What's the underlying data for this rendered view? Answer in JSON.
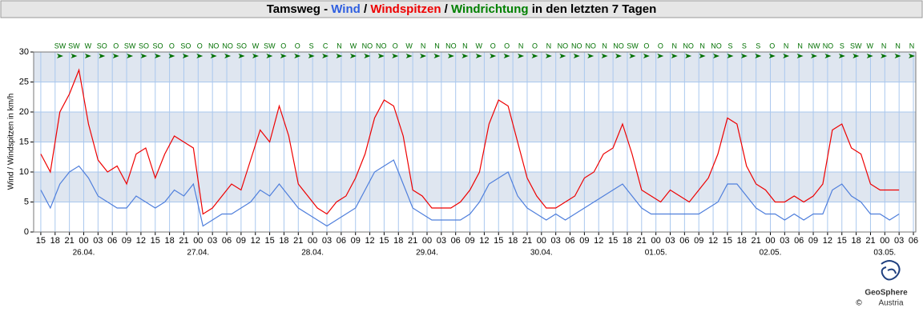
{
  "chart_data": {
    "type": "line",
    "title_parts": [
      {
        "text": "Tamsweg - ",
        "color": "#000000"
      },
      {
        "text": "Wind",
        "color": "#2f5fe0"
      },
      {
        "text": " / ",
        "color": "#000000"
      },
      {
        "text": "Windspitzen",
        "color": "#ee0000"
      },
      {
        "text": " / ",
        "color": "#000000"
      },
      {
        "text": "Windrichtung",
        "color": "#008000"
      },
      {
        "text": " in den letzten 7 Tagen",
        "color": "#000000"
      }
    ],
    "y_label": "Wind / Windspitzen in km/h",
    "ylim": [
      0,
      30
    ],
    "yticks": [
      0,
      5,
      10,
      15,
      20,
      25,
      30
    ],
    "grid": true,
    "xlim": [
      -10.5,
      174.5
    ],
    "xticks": [
      {
        "value": -9,
        "label": "15"
      },
      {
        "value": -6,
        "label": "18"
      },
      {
        "value": -3,
        "label": "21"
      },
      {
        "value": 0,
        "label": "00"
      },
      {
        "value": 3,
        "label": "03"
      },
      {
        "value": 6,
        "label": "06"
      },
      {
        "value": 9,
        "label": "09"
      },
      {
        "value": 12,
        "label": "12"
      },
      {
        "value": 15,
        "label": "15"
      },
      {
        "value": 18,
        "label": "18"
      },
      {
        "value": 21,
        "label": "21"
      },
      {
        "value": 24,
        "label": "00"
      },
      {
        "value": 27,
        "label": "03"
      },
      {
        "value": 30,
        "label": "06"
      },
      {
        "value": 33,
        "label": "09"
      },
      {
        "value": 36,
        "label": "12"
      },
      {
        "value": 39,
        "label": "15"
      },
      {
        "value": 42,
        "label": "18"
      },
      {
        "value": 45,
        "label": "21"
      },
      {
        "value": 48,
        "label": "00"
      },
      {
        "value": 51,
        "label": "03"
      },
      {
        "value": 54,
        "label": "06"
      },
      {
        "value": 57,
        "label": "09"
      },
      {
        "value": 60,
        "label": "12"
      },
      {
        "value": 63,
        "label": "15"
      },
      {
        "value": 66,
        "label": "18"
      },
      {
        "value": 69,
        "label": "21"
      },
      {
        "value": 72,
        "label": "00"
      },
      {
        "value": 75,
        "label": "03"
      },
      {
        "value": 78,
        "label": "06"
      },
      {
        "value": 81,
        "label": "09"
      },
      {
        "value": 84,
        "label": "12"
      },
      {
        "value": 87,
        "label": "15"
      },
      {
        "value": 90,
        "label": "18"
      },
      {
        "value": 93,
        "label": "21"
      },
      {
        "value": 96,
        "label": "00"
      },
      {
        "value": 99,
        "label": "03"
      },
      {
        "value": 102,
        "label": "06"
      },
      {
        "value": 105,
        "label": "09"
      },
      {
        "value": 108,
        "label": "12"
      },
      {
        "value": 111,
        "label": "15"
      },
      {
        "value": 114,
        "label": "18"
      },
      {
        "value": 117,
        "label": "21"
      },
      {
        "value": 120,
        "label": "00"
      },
      {
        "value": 123,
        "label": "03"
      },
      {
        "value": 126,
        "label": "06"
      },
      {
        "value": 129,
        "label": "09"
      },
      {
        "value": 132,
        "label": "12"
      },
      {
        "value": 135,
        "label": "15"
      },
      {
        "value": 138,
        "label": "18"
      },
      {
        "value": 141,
        "label": "21"
      },
      {
        "value": 144,
        "label": "00"
      },
      {
        "value": 147,
        "label": "03"
      },
      {
        "value": 150,
        "label": "06"
      },
      {
        "value": 153,
        "label": "09"
      },
      {
        "value": 156,
        "label": "12"
      },
      {
        "value": 159,
        "label": "15"
      },
      {
        "value": 162,
        "label": "18"
      },
      {
        "value": 165,
        "label": "21"
      },
      {
        "value": 168,
        "label": "00"
      },
      {
        "value": 171,
        "label": "03"
      },
      {
        "value": 174,
        "label": "06"
      }
    ],
    "date_ticks": [
      {
        "value": 0,
        "label": "26.04."
      },
      {
        "value": 24,
        "label": "27.04."
      },
      {
        "value": 48,
        "label": "28.04."
      },
      {
        "value": 72,
        "label": "29.04."
      },
      {
        "value": 96,
        "label": "30.04."
      },
      {
        "value": 120,
        "label": "01.05."
      },
      {
        "value": 144,
        "label": "02.05."
      },
      {
        "value": 168,
        "label": "03.05."
      }
    ],
    "x": [
      -9,
      -7,
      -5,
      -3,
      -1,
      1,
      3,
      5,
      7,
      9,
      11,
      13,
      15,
      17,
      19,
      21,
      23,
      25,
      27,
      29,
      31,
      33,
      35,
      37,
      39,
      41,
      43,
      45,
      47,
      49,
      51,
      53,
      55,
      57,
      59,
      61,
      63,
      65,
      67,
      69,
      71,
      73,
      75,
      77,
      79,
      81,
      83,
      85,
      87,
      89,
      91,
      93,
      95,
      97,
      99,
      101,
      103,
      105,
      107,
      109,
      111,
      113,
      115,
      117,
      119,
      121,
      123,
      125,
      127,
      129,
      131,
      133,
      135,
      137,
      139,
      141,
      143,
      145,
      147,
      149,
      151,
      153,
      155,
      157,
      159,
      161,
      163,
      165,
      167,
      169,
      171
    ],
    "series": [
      {
        "name": "Windspitzen",
        "color": "#ee0000",
        "values": [
          13,
          10,
          20,
          23,
          27,
          18,
          12,
          10,
          11,
          8,
          13,
          14,
          9,
          13,
          16,
          15,
          14,
          3,
          4,
          6,
          8,
          7,
          12,
          17,
          15,
          21,
          16,
          8,
          6,
          4,
          3,
          5,
          6,
          9,
          13,
          19,
          22,
          21,
          16,
          7,
          6,
          4,
          4,
          4,
          5,
          7,
          10,
          18,
          22,
          21,
          15,
          9,
          6,
          4,
          4,
          5,
          6,
          9,
          10,
          13,
          14,
          18,
          13,
          7,
          6,
          5,
          7,
          6,
          5,
          7,
          9,
          13,
          19,
          18,
          11,
          8,
          7,
          5,
          5,
          6,
          5,
          6,
          8,
          17,
          18,
          14,
          13,
          8,
          7,
          7,
          7
        ]
      },
      {
        "name": "Wind",
        "color": "#4f7fdc",
        "values": [
          7,
          4,
          8,
          10,
          11,
          9,
          6,
          5,
          4,
          4,
          6,
          5,
          4,
          5,
          7,
          6,
          8,
          1,
          2,
          3,
          3,
          4,
          5,
          7,
          6,
          8,
          6,
          4,
          3,
          2,
          1,
          2,
          3,
          4,
          7,
          10,
          11,
          12,
          8,
          4,
          3,
          2,
          2,
          2,
          2,
          3,
          5,
          8,
          9,
          10,
          6,
          4,
          3,
          2,
          3,
          2,
          3,
          4,
          5,
          6,
          7,
          8,
          6,
          4,
          3,
          3,
          3,
          3,
          3,
          3,
          4,
          5,
          8,
          8,
          6,
          4,
          3,
          3,
          2,
          3,
          2,
          3,
          3,
          7,
          8,
          6,
          5,
          3,
          3,
          2,
          3
        ]
      }
    ],
    "directions": [
      "SW",
      "SW",
      "W",
      "SO",
      "O",
      "SW",
      "SO",
      "SO",
      "O",
      "SO",
      "O",
      "NO",
      "NO",
      "SO",
      "W",
      "SW",
      "O",
      "O",
      "S",
      "C",
      "N",
      "W",
      "NO",
      "NO",
      "O",
      "W",
      "N",
      "N",
      "NO",
      "N",
      "W",
      "O",
      "O",
      "N",
      "O",
      "N",
      "NO",
      "NO",
      "NO",
      "N",
      "NO",
      "SW",
      "O",
      "O",
      "N",
      "NO",
      "N",
      "NO",
      "S",
      "S",
      "S",
      "O",
      "N",
      "N",
      "NW",
      "NO",
      "S",
      "SW",
      "W",
      "N",
      "N",
      "N"
    ],
    "direction_color": "#007000",
    "logo": {
      "name": "GeoSphere",
      "sub": "Austria",
      "copyright": "©"
    }
  }
}
